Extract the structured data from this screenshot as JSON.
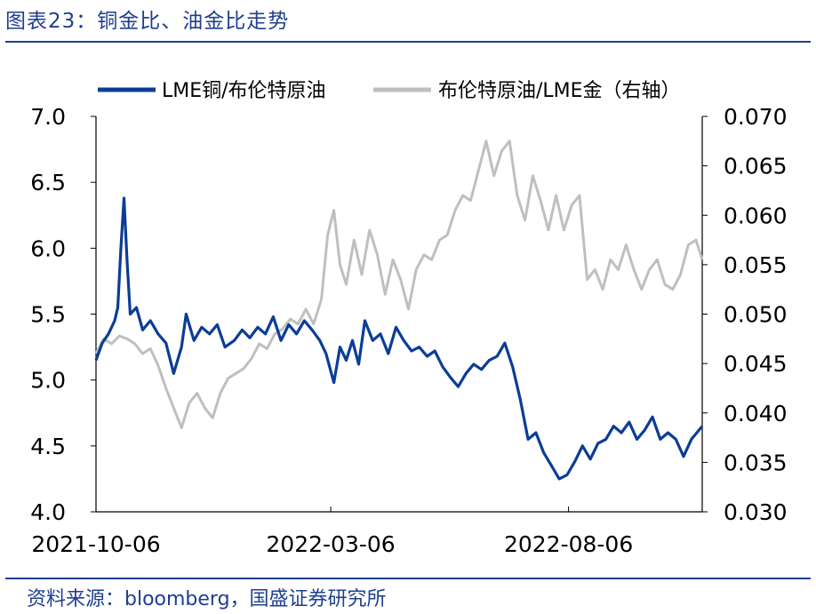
{
  "header": {
    "title": "图表23：铜金比、油金比走势"
  },
  "footer": {
    "source": "资料来源：bloomberg，国盛证券研究所"
  },
  "colors": {
    "copper_oil": "#0b3d96",
    "oil_gold": "#bfbfbf",
    "accent": "#1f3f8f"
  },
  "chart_data": {
    "type": "line",
    "title": "",
    "legend_position": "top",
    "grid": false,
    "xlim": [
      "2021-10-06",
      "2022-10-31"
    ],
    "x_ticks": [
      "2021-10-06",
      "2022-03-06",
      "2022-08-06"
    ],
    "y_left": {
      "lim": [
        4.0,
        7.0
      ],
      "ticks": [
        "4.0",
        "4.5",
        "5.0",
        "5.5",
        "6.0",
        "6.5",
        "7.0"
      ]
    },
    "y_right": {
      "lim": [
        0.03,
        0.07
      ],
      "ticks": [
        "0.030",
        "0.035",
        "0.040",
        "0.045",
        "0.050",
        "0.055",
        "0.060",
        "0.065",
        "0.070"
      ]
    },
    "series": [
      {
        "name": "LME铜/布伦特原油",
        "axis": "left",
        "points": [
          [
            "2021-10-06",
            5.15
          ],
          [
            "2021-10-10",
            5.28
          ],
          [
            "2021-10-14",
            5.35
          ],
          [
            "2021-10-18",
            5.45
          ],
          [
            "2021-10-20",
            5.55
          ],
          [
            "2021-10-22",
            6.0
          ],
          [
            "2021-10-24",
            6.38
          ],
          [
            "2021-10-26",
            5.9
          ],
          [
            "2021-10-28",
            5.5
          ],
          [
            "2021-11-01",
            5.55
          ],
          [
            "2021-11-05",
            5.38
          ],
          [
            "2021-11-10",
            5.45
          ],
          [
            "2021-11-15",
            5.35
          ],
          [
            "2021-11-20",
            5.28
          ],
          [
            "2021-11-25",
            5.05
          ],
          [
            "2021-11-30",
            5.25
          ],
          [
            "2021-12-03",
            5.5
          ],
          [
            "2021-12-08",
            5.3
          ],
          [
            "2021-12-13",
            5.4
          ],
          [
            "2021-12-18",
            5.35
          ],
          [
            "2021-12-23",
            5.42
          ],
          [
            "2021-12-28",
            5.25
          ],
          [
            "2022-01-03",
            5.3
          ],
          [
            "2022-01-08",
            5.38
          ],
          [
            "2022-01-13",
            5.32
          ],
          [
            "2022-01-18",
            5.4
          ],
          [
            "2022-01-23",
            5.35
          ],
          [
            "2022-01-28",
            5.48
          ],
          [
            "2022-02-02",
            5.3
          ],
          [
            "2022-02-07",
            5.42
          ],
          [
            "2022-02-12",
            5.35
          ],
          [
            "2022-02-17",
            5.45
          ],
          [
            "2022-02-22",
            5.38
          ],
          [
            "2022-02-27",
            5.3
          ],
          [
            "2022-03-03",
            5.2
          ],
          [
            "2022-03-08",
            4.98
          ],
          [
            "2022-03-12",
            5.25
          ],
          [
            "2022-03-16",
            5.15
          ],
          [
            "2022-03-20",
            5.3
          ],
          [
            "2022-03-24",
            5.12
          ],
          [
            "2022-03-28",
            5.45
          ],
          [
            "2022-04-02",
            5.3
          ],
          [
            "2022-04-07",
            5.35
          ],
          [
            "2022-04-12",
            5.2
          ],
          [
            "2022-04-17",
            5.4
          ],
          [
            "2022-04-22",
            5.3
          ],
          [
            "2022-04-27",
            5.22
          ],
          [
            "2022-05-02",
            5.25
          ],
          [
            "2022-05-07",
            5.18
          ],
          [
            "2022-05-12",
            5.22
          ],
          [
            "2022-05-17",
            5.1
          ],
          [
            "2022-05-22",
            5.02
          ],
          [
            "2022-05-27",
            4.95
          ],
          [
            "2022-06-01",
            5.05
          ],
          [
            "2022-06-06",
            5.12
          ],
          [
            "2022-06-11",
            5.08
          ],
          [
            "2022-06-16",
            5.15
          ],
          [
            "2022-06-21",
            5.18
          ],
          [
            "2022-06-26",
            5.28
          ],
          [
            "2022-07-01",
            5.1
          ],
          [
            "2022-07-06",
            4.85
          ],
          [
            "2022-07-11",
            4.55
          ],
          [
            "2022-07-16",
            4.6
          ],
          [
            "2022-07-21",
            4.45
          ],
          [
            "2022-07-26",
            4.35
          ],
          [
            "2022-07-31",
            4.25
          ],
          [
            "2022-08-05",
            4.28
          ],
          [
            "2022-08-10",
            4.38
          ],
          [
            "2022-08-15",
            4.5
          ],
          [
            "2022-08-20",
            4.4
          ],
          [
            "2022-08-25",
            4.52
          ],
          [
            "2022-08-30",
            4.55
          ],
          [
            "2022-09-04",
            4.65
          ],
          [
            "2022-09-09",
            4.6
          ],
          [
            "2022-09-14",
            4.68
          ],
          [
            "2022-09-19",
            4.55
          ],
          [
            "2022-09-24",
            4.62
          ],
          [
            "2022-09-29",
            4.72
          ],
          [
            "2022-10-04",
            4.55
          ],
          [
            "2022-10-09",
            4.6
          ],
          [
            "2022-10-14",
            4.55
          ],
          [
            "2022-10-19",
            4.42
          ],
          [
            "2022-10-24",
            4.55
          ],
          [
            "2022-10-31",
            4.65
          ]
        ]
      },
      {
        "name": "布伦特原油/LME金（右轴）",
        "axis": "right",
        "points": [
          [
            "2021-10-06",
            0.046
          ],
          [
            "2021-10-11",
            0.0475
          ],
          [
            "2021-10-16",
            0.047
          ],
          [
            "2021-10-21",
            0.0478
          ],
          [
            "2021-10-26",
            0.0475
          ],
          [
            "2021-10-31",
            0.047
          ],
          [
            "2021-11-05",
            0.046
          ],
          [
            "2021-11-10",
            0.0465
          ],
          [
            "2021-11-15",
            0.0448
          ],
          [
            "2021-11-20",
            0.0425
          ],
          [
            "2021-11-25",
            0.0405
          ],
          [
            "2021-11-30",
            0.0385
          ],
          [
            "2021-12-05",
            0.041
          ],
          [
            "2021-12-10",
            0.042
          ],
          [
            "2021-12-15",
            0.0405
          ],
          [
            "2021-12-20",
            0.0395
          ],
          [
            "2021-12-25",
            0.042
          ],
          [
            "2021-12-30",
            0.0435
          ],
          [
            "2022-01-04",
            0.044
          ],
          [
            "2022-01-09",
            0.0445
          ],
          [
            "2022-01-14",
            0.0455
          ],
          [
            "2022-01-19",
            0.047
          ],
          [
            "2022-01-24",
            0.0465
          ],
          [
            "2022-01-29",
            0.048
          ],
          [
            "2022-02-03",
            0.0485
          ],
          [
            "2022-02-08",
            0.0495
          ],
          [
            "2022-02-13",
            0.049
          ],
          [
            "2022-02-18",
            0.0505
          ],
          [
            "2022-02-23",
            0.049
          ],
          [
            "2022-02-28",
            0.0515
          ],
          [
            "2022-03-04",
            0.058
          ],
          [
            "2022-03-08",
            0.0605
          ],
          [
            "2022-03-12",
            0.055
          ],
          [
            "2022-03-16",
            0.053
          ],
          [
            "2022-03-21",
            0.0575
          ],
          [
            "2022-03-26",
            0.054
          ],
          [
            "2022-03-31",
            0.0585
          ],
          [
            "2022-04-05",
            0.056
          ],
          [
            "2022-04-10",
            0.052
          ],
          [
            "2022-04-15",
            0.0555
          ],
          [
            "2022-04-20",
            0.0535
          ],
          [
            "2022-04-25",
            0.0505
          ],
          [
            "2022-04-30",
            0.0545
          ],
          [
            "2022-05-05",
            0.056
          ],
          [
            "2022-05-10",
            0.0555
          ],
          [
            "2022-05-15",
            0.0575
          ],
          [
            "2022-05-20",
            0.058
          ],
          [
            "2022-05-25",
            0.0605
          ],
          [
            "2022-05-30",
            0.062
          ],
          [
            "2022-06-04",
            0.0615
          ],
          [
            "2022-06-09",
            0.0645
          ],
          [
            "2022-06-14",
            0.0675
          ],
          [
            "2022-06-19",
            0.064
          ],
          [
            "2022-06-24",
            0.0665
          ],
          [
            "2022-06-29",
            0.0675
          ],
          [
            "2022-07-04",
            0.062
          ],
          [
            "2022-07-09",
            0.0595
          ],
          [
            "2022-07-14",
            0.064
          ],
          [
            "2022-07-19",
            0.0615
          ],
          [
            "2022-07-24",
            0.0585
          ],
          [
            "2022-07-29",
            0.062
          ],
          [
            "2022-08-03",
            0.0585
          ],
          [
            "2022-08-08",
            0.061
          ],
          [
            "2022-08-13",
            0.062
          ],
          [
            "2022-08-18",
            0.0535
          ],
          [
            "2022-08-23",
            0.0545
          ],
          [
            "2022-08-28",
            0.0525
          ],
          [
            "2022-09-02",
            0.0555
          ],
          [
            "2022-09-07",
            0.0545
          ],
          [
            "2022-09-12",
            0.057
          ],
          [
            "2022-09-17",
            0.0545
          ],
          [
            "2022-09-22",
            0.0525
          ],
          [
            "2022-09-27",
            0.0545
          ],
          [
            "2022-10-02",
            0.0555
          ],
          [
            "2022-10-07",
            0.053
          ],
          [
            "2022-10-12",
            0.0525
          ],
          [
            "2022-10-17",
            0.054
          ],
          [
            "2022-10-22",
            0.057
          ],
          [
            "2022-10-27",
            0.0575
          ],
          [
            "2022-10-31",
            0.0555
          ]
        ]
      }
    ]
  }
}
